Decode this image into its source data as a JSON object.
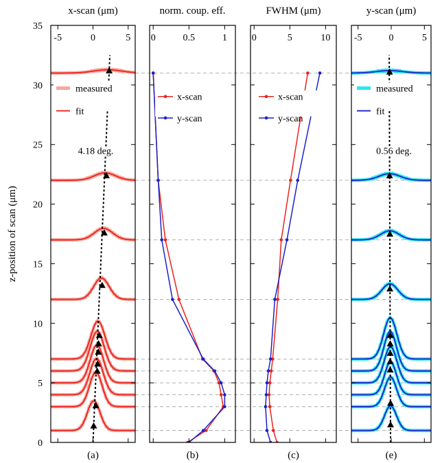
{
  "chart_data": {
    "type": "line",
    "shared_y": {
      "label": "z-position of scan (μm)",
      "ylim": [
        0,
        35
      ],
      "ticks": [
        0,
        5,
        10,
        15,
        20,
        25,
        30,
        35
      ]
    },
    "scan_z": [
      1,
      3,
      4,
      5,
      6,
      7,
      12,
      17,
      22,
      31
    ],
    "panels": [
      {
        "id": "a",
        "title": "x-scan (μm)",
        "sublabel": "(a)",
        "xlim": [
          -6,
          6
        ],
        "xticks": [
          -5,
          0,
          5
        ],
        "legend": [
          "measured",
          "fit"
        ],
        "colors": {
          "measured": "#f7a79c",
          "fit": "#e8231e"
        },
        "annotation": "4.18 deg.",
        "profiles": [
          {
            "z": 1,
            "center": 0.1,
            "amp": 1.8,
            "sigma": 0.9
          },
          {
            "z": 3,
            "center": 0.4,
            "amp": 2.1,
            "sigma": 0.9
          },
          {
            "z": 4,
            "center": 0.5,
            "amp": 2.2,
            "sigma": 0.95
          },
          {
            "z": 5,
            "center": 0.55,
            "amp": 2.3,
            "sigma": 0.95
          },
          {
            "z": 6,
            "center": 0.6,
            "amp": 2.4,
            "sigma": 1.0
          },
          {
            "z": 7,
            "center": 0.7,
            "amp": 2.3,
            "sigma": 1.0
          },
          {
            "z": 12,
            "center": 1.2,
            "amp": 1.3,
            "sigma": 1.1
          },
          {
            "z": 17,
            "center": 1.5,
            "amp": 0.7,
            "sigma": 1.3
          },
          {
            "z": 22,
            "center": 1.7,
            "amp": 0.45,
            "sigma": 1.5
          },
          {
            "z": 31,
            "center": 2.1,
            "amp": 0.2,
            "sigma": 2.0
          }
        ],
        "peaks": [
          {
            "x": 0.1,
            "z": 1.4
          },
          {
            "x": 0.4,
            "z": 3.1
          },
          {
            "x": 0.6,
            "z": 6.0
          },
          {
            "x": 0.65,
            "z": 6.6
          },
          {
            "x": 0.75,
            "z": 7.6
          },
          {
            "x": 0.8,
            "z": 8.3
          },
          {
            "x": 0.9,
            "z": 9.0
          },
          {
            "x": 1.3,
            "z": 13.2
          },
          {
            "x": 1.6,
            "z": 17.6
          },
          {
            "x": 1.9,
            "z": 22.4
          },
          {
            "x": 2.3,
            "z": 31.2
          }
        ],
        "trend": {
          "x0": 0.0,
          "z0": 0.0,
          "x1": 2.4,
          "z1": 32.5
        }
      },
      {
        "id": "b",
        "title": "norm. coup. eff.",
        "sublabel": "(b)",
        "xlim": [
          -0.05,
          1.15
        ],
        "xticks": [
          0,
          0.5,
          1
        ],
        "xtick_labels": [
          "0",
          "0.5",
          "1"
        ],
        "legend": [
          "x-scan",
          "y-scan"
        ],
        "series": [
          {
            "name": "x-scan",
            "color": "#e8231e",
            "points": [
              [
                0.48,
                0
              ],
              [
                0.74,
                1
              ],
              [
                0.98,
                3
              ],
              [
                0.95,
                4
              ],
              [
                0.92,
                5
              ],
              [
                0.85,
                6
              ],
              [
                0.69,
                7
              ],
              [
                0.36,
                12
              ],
              [
                0.17,
                17
              ],
              [
                0.07,
                22
              ],
              [
                0.0,
                31
              ]
            ]
          },
          {
            "name": "y-scan",
            "color": "#1b20c8",
            "points": [
              [
                0.5,
                0
              ],
              [
                0.7,
                1
              ],
              [
                1.0,
                3
              ],
              [
                1.0,
                4
              ],
              [
                0.95,
                5
              ],
              [
                0.86,
                6
              ],
              [
                0.7,
                7
              ],
              [
                0.27,
                12
              ],
              [
                0.12,
                17
              ],
              [
                0.07,
                22
              ],
              [
                0.0,
                31
              ]
            ]
          }
        ]
      },
      {
        "id": "c",
        "title": "FWHM (μm)",
        "sublabel": "(c)",
        "xlim": [
          -0.5,
          11.5
        ],
        "xticks": [
          0,
          5,
          10
        ],
        "xtick_labels": [
          "0",
          "5",
          "10"
        ],
        "legend": [
          "x-scan",
          "y-scan"
        ],
        "series": [
          {
            "name": "x-scan",
            "color": "#e8231e",
            "points": [
              [
                3.2,
                0
              ],
              [
                2.7,
                1
              ],
              [
                2.2,
                3
              ],
              [
                2.1,
                4
              ],
              [
                2.2,
                5
              ],
              [
                2.4,
                6
              ],
              [
                2.6,
                7
              ],
              [
                3.3,
                12
              ],
              [
                3.8,
                17
              ],
              [
                5.1,
                22
              ],
              [
                7.5,
                31
              ]
            ]
          },
          {
            "name": "y-scan",
            "color": "#1b20c8",
            "points": [
              [
                2.3,
                0
              ],
              [
                1.8,
                1
              ],
              [
                1.6,
                3
              ],
              [
                1.7,
                4
              ],
              [
                1.8,
                5
              ],
              [
                2.0,
                6
              ],
              [
                2.3,
                7
              ],
              [
                2.9,
                12
              ],
              [
                4.6,
                17
              ],
              [
                6.1,
                22
              ],
              [
                9.2,
                31
              ]
            ]
          }
        ]
      },
      {
        "id": "e",
        "title": "y-scan (μm)",
        "sublabel": "(e)",
        "xlim": [
          -6,
          6
        ],
        "xticks": [
          -5,
          0,
          5
        ],
        "legend": [
          "measured",
          "fit"
        ],
        "colors": {
          "measured": "#2ee6f0",
          "fit": "#1b20c8"
        },
        "annotation": "0.56 deg.",
        "profiles": [
          {
            "z": 1,
            "center": -0.1,
            "amp": 1.5,
            "sigma": 0.9
          },
          {
            "z": 3,
            "center": -0.1,
            "amp": 1.8,
            "sigma": 0.9
          },
          {
            "z": 4,
            "center": -0.1,
            "amp": 2.0,
            "sigma": 0.9
          },
          {
            "z": 5,
            "center": -0.1,
            "amp": 2.2,
            "sigma": 0.95
          },
          {
            "z": 6,
            "center": -0.15,
            "amp": 2.4,
            "sigma": 0.95
          },
          {
            "z": 7,
            "center": -0.15,
            "amp": 2.5,
            "sigma": 1.0
          },
          {
            "z": 12,
            "center": -0.2,
            "amp": 0.95,
            "sigma": 1.2
          },
          {
            "z": 17,
            "center": -0.2,
            "amp": 0.55,
            "sigma": 1.4
          },
          {
            "z": 22,
            "center": -0.25,
            "amp": 0.4,
            "sigma": 1.6
          },
          {
            "z": 31,
            "center": -0.25,
            "amp": 0.15,
            "sigma": 2.0
          }
        ],
        "peaks": [
          {
            "x": -0.1,
            "z": 1.5
          },
          {
            "x": -0.1,
            "z": 3.3
          },
          {
            "x": -0.15,
            "z": 6.1
          },
          {
            "x": -0.15,
            "z": 6.8
          },
          {
            "x": -0.15,
            "z": 7.5
          },
          {
            "x": -0.15,
            "z": 8.3
          },
          {
            "x": -0.15,
            "z": 9.0
          },
          {
            "x": -0.2,
            "z": 12.9
          },
          {
            "x": -0.2,
            "z": 17.5
          },
          {
            "x": -0.25,
            "z": 22.4
          },
          {
            "x": -0.25,
            "z": 31.1
          }
        ],
        "trend": {
          "x0": -0.1,
          "z0": 0.0,
          "x1": -0.3,
          "z1": 32.5
        }
      }
    ]
  }
}
